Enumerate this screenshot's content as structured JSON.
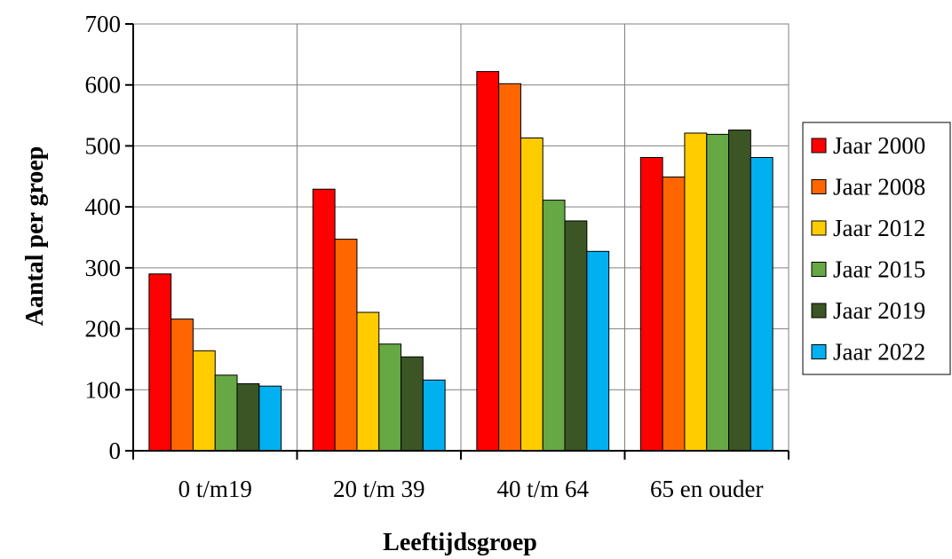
{
  "chart_data": {
    "type": "bar",
    "title": "",
    "xlabel": "Leeftijdsgroep",
    "ylabel": "Aantal per groep",
    "categories": [
      "0 t/m19",
      "20 t/m 39",
      "40 t/m 64",
      "65 en ouder"
    ],
    "series": [
      {
        "name": "Jaar 2000",
        "values": [
          290,
          429,
          622,
          481
        ]
      },
      {
        "name": "Jaar 2008",
        "values": [
          216,
          347,
          602,
          449
        ]
      },
      {
        "name": "Jaar 2012",
        "values": [
          164,
          227,
          513,
          521
        ]
      },
      {
        "name": "Jaar 2015",
        "values": [
          124,
          175,
          411,
          519
        ]
      },
      {
        "name": "Jaar 2019",
        "values": [
          110,
          154,
          377,
          526
        ]
      },
      {
        "name": "Jaar 2022",
        "values": [
          106,
          116,
          327,
          481
        ]
      }
    ],
    "ylim": [
      0,
      700
    ],
    "yticks": [
      0,
      100,
      200,
      300,
      400,
      500,
      600,
      700
    ],
    "grid": true,
    "legend_position": "right",
    "colors": [
      "#ff0000",
      "#ff6600",
      "#ffcc00",
      "#66a844",
      "#3b5524",
      "#00b0f0"
    ]
  }
}
